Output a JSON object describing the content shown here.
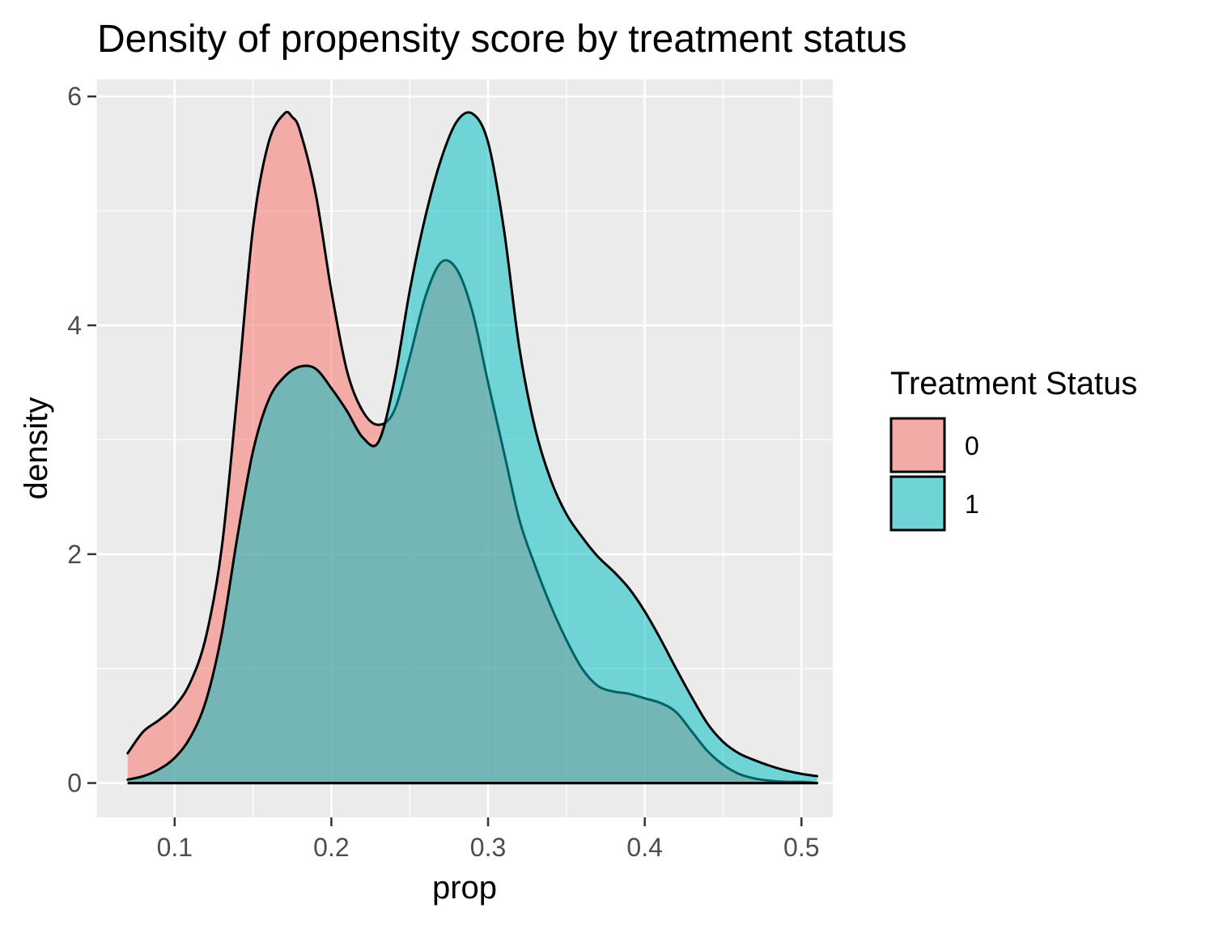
{
  "chart_data": {
    "type": "area",
    "title": "Density of propensity score by treatment status",
    "xlabel": "prop",
    "ylabel": "density",
    "xlim": [
      0.05,
      0.52
    ],
    "ylim": [
      -0.3,
      6.15
    ],
    "x_ticks": [
      0.1,
      0.2,
      0.3,
      0.4,
      0.5
    ],
    "x_tick_labels": [
      "0.1",
      "0.2",
      "0.3",
      "0.4",
      "0.5"
    ],
    "y_ticks": [
      0,
      2,
      4,
      6
    ],
    "y_tick_labels": [
      "0",
      "2",
      "4",
      "6"
    ],
    "grid": true,
    "background": "#ebebeb",
    "legend": {
      "title": "Treatment Status",
      "position": "right",
      "entries": [
        {
          "label": "0",
          "color": "#f8766d"
        },
        {
          "label": "1",
          "color": "#00bfc4"
        }
      ]
    },
    "series": [
      {
        "name": "0",
        "color": "#f8766d",
        "opacity": 0.55,
        "x": [
          0.07,
          0.08,
          0.09,
          0.1,
          0.11,
          0.12,
          0.13,
          0.14,
          0.15,
          0.16,
          0.17,
          0.175,
          0.18,
          0.19,
          0.2,
          0.21,
          0.22,
          0.23,
          0.24,
          0.25,
          0.26,
          0.27,
          0.28,
          0.29,
          0.3,
          0.31,
          0.32,
          0.33,
          0.34,
          0.35,
          0.36,
          0.37,
          0.38,
          0.39,
          0.4,
          0.41,
          0.42,
          0.43,
          0.44,
          0.45,
          0.46,
          0.47,
          0.48,
          0.49,
          0.5,
          0.51
        ],
        "values": [
          0.26,
          0.45,
          0.55,
          0.67,
          0.88,
          1.28,
          2.05,
          3.4,
          4.85,
          5.6,
          5.85,
          5.82,
          5.7,
          5.15,
          4.3,
          3.6,
          3.25,
          3.13,
          3.25,
          3.72,
          4.25,
          4.55,
          4.49,
          4.12,
          3.5,
          2.9,
          2.3,
          1.9,
          1.55,
          1.25,
          1.0,
          0.85,
          0.8,
          0.78,
          0.74,
          0.7,
          0.62,
          0.45,
          0.28,
          0.16,
          0.08,
          0.04,
          0.02,
          0.01,
          0.01,
          0.0
        ]
      },
      {
        "name": "1",
        "color": "#00bfc4",
        "opacity": 0.52,
        "x": [
          0.07,
          0.08,
          0.09,
          0.1,
          0.11,
          0.12,
          0.13,
          0.14,
          0.15,
          0.16,
          0.17,
          0.18,
          0.19,
          0.2,
          0.21,
          0.22,
          0.23,
          0.24,
          0.25,
          0.26,
          0.27,
          0.28,
          0.29,
          0.3,
          0.31,
          0.32,
          0.33,
          0.34,
          0.35,
          0.36,
          0.37,
          0.38,
          0.39,
          0.4,
          0.41,
          0.42,
          0.43,
          0.44,
          0.45,
          0.46,
          0.47,
          0.48,
          0.49,
          0.5,
          0.51
        ],
        "values": [
          0.03,
          0.06,
          0.12,
          0.22,
          0.4,
          0.72,
          1.3,
          2.15,
          2.9,
          3.35,
          3.55,
          3.64,
          3.62,
          3.45,
          3.25,
          3.02,
          2.98,
          3.5,
          4.3,
          4.95,
          5.45,
          5.78,
          5.85,
          5.6,
          4.85,
          3.8,
          3.1,
          2.65,
          2.35,
          2.15,
          1.98,
          1.85,
          1.7,
          1.5,
          1.26,
          1.0,
          0.75,
          0.52,
          0.36,
          0.26,
          0.2,
          0.15,
          0.11,
          0.08,
          0.06
        ]
      }
    ]
  }
}
